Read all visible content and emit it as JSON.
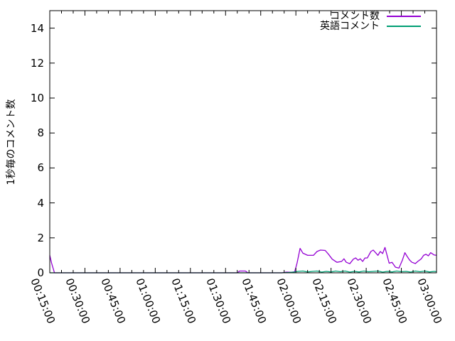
{
  "chart_data": {
    "type": "line",
    "ylabel": "1秒毎のコメント数",
    "xlabel": "",
    "ylim": [
      0,
      15
    ],
    "x_start_minutes": 15,
    "x_end_minutes": 180,
    "x_minor_tick_step_minutes": 5,
    "grid": false,
    "background_color": "#ffffff",
    "axis_color": "#000000",
    "ytick_values": [
      0,
      2,
      4,
      6,
      8,
      10,
      12,
      14
    ],
    "ytick_labels": [
      "0",
      "2",
      "4",
      "6",
      "8",
      "10",
      "12",
      "14"
    ],
    "xticks": [
      {
        "minutes": 15,
        "label": "00:15:00"
      },
      {
        "minutes": 30,
        "label": "00:30:00"
      },
      {
        "minutes": 45,
        "label": "00:45:00"
      },
      {
        "minutes": 60,
        "label": "01:00:00"
      },
      {
        "minutes": 75,
        "label": "01:15:00"
      },
      {
        "minutes": 90,
        "label": "01:30:00"
      },
      {
        "minutes": 105,
        "label": "01:45:00"
      },
      {
        "minutes": 120,
        "label": "02:00:00"
      },
      {
        "minutes": 135,
        "label": "02:15:00"
      },
      {
        "minutes": 150,
        "label": "02:30:00"
      },
      {
        "minutes": 165,
        "label": "02:45:00"
      },
      {
        "minutes": 180,
        "label": "03:00:00"
      }
    ],
    "legend_position": "top-right-inside",
    "series": [
      {
        "name": "コメント数",
        "color": "#9400d3",
        "points": [
          [
            15,
            1.0
          ],
          [
            15.8,
            0.55
          ],
          [
            17,
            0
          ],
          [
            95,
            0
          ],
          [
            96,
            0.1
          ],
          [
            98.5,
            0.1
          ],
          [
            99.5,
            0
          ],
          [
            114,
            0
          ],
          [
            116,
            0.04
          ],
          [
            118,
            0.03
          ],
          [
            119.5,
            0.06
          ],
          [
            120.5,
            0.55
          ],
          [
            121.8,
            1.4
          ],
          [
            123,
            1.12
          ],
          [
            125,
            1.0
          ],
          [
            127.5,
            1.0
          ],
          [
            129,
            1.22
          ],
          [
            130.5,
            1.3
          ],
          [
            132.5,
            1.28
          ],
          [
            134,
            1.05
          ],
          [
            135.5,
            0.78
          ],
          [
            137.5,
            0.6
          ],
          [
            139.5,
            0.65
          ],
          [
            140.5,
            0.8
          ],
          [
            141.5,
            0.6
          ],
          [
            143,
            0.52
          ],
          [
            144.5,
            0.78
          ],
          [
            145.5,
            0.85
          ],
          [
            146.5,
            0.72
          ],
          [
            147.5,
            0.8
          ],
          [
            148.5,
            0.65
          ],
          [
            149.5,
            0.85
          ],
          [
            150.5,
            0.85
          ],
          [
            152,
            1.22
          ],
          [
            153,
            1.3
          ],
          [
            154,
            1.15
          ],
          [
            155,
            1.0
          ],
          [
            156,
            1.22
          ],
          [
            157,
            1.1
          ],
          [
            158,
            1.45
          ],
          [
            159.8,
            0.55
          ],
          [
            161,
            0.6
          ],
          [
            162.5,
            0.32
          ],
          [
            164,
            0.27
          ],
          [
            165.5,
            0.75
          ],
          [
            166.5,
            1.15
          ],
          [
            167.5,
            0.93
          ],
          [
            168.5,
            0.73
          ],
          [
            169.5,
            0.6
          ],
          [
            171,
            0.53
          ],
          [
            172,
            0.65
          ],
          [
            173.5,
            0.8
          ],
          [
            174.5,
            1.0
          ],
          [
            175.5,
            1.06
          ],
          [
            176.5,
            0.97
          ],
          [
            177.5,
            1.15
          ],
          [
            179,
            1.02
          ],
          [
            180,
            1.0
          ]
        ]
      },
      {
        "name": "英語コメント",
        "color": "#009e73",
        "points": [
          [
            15,
            0
          ],
          [
            95,
            0
          ],
          [
            114,
            0
          ],
          [
            117,
            0.02
          ],
          [
            119,
            0.04
          ],
          [
            121,
            0.08
          ],
          [
            123,
            0.1
          ],
          [
            125,
            0.05
          ],
          [
            127,
            0.08
          ],
          [
            129,
            0.1
          ],
          [
            131,
            0.04
          ],
          [
            133,
            0.08
          ],
          [
            135,
            0.05
          ],
          [
            137,
            0.1
          ],
          [
            139,
            0.06
          ],
          [
            141,
            0.1
          ],
          [
            143,
            0.04
          ],
          [
            145,
            0.08
          ],
          [
            147,
            0.05
          ],
          [
            149,
            0.1
          ],
          [
            151,
            0.06
          ],
          [
            153,
            0.08
          ],
          [
            155,
            0.1
          ],
          [
            157,
            0.04
          ],
          [
            159,
            0.08
          ],
          [
            161,
            0.05
          ],
          [
            163,
            0.1
          ],
          [
            165,
            0.06
          ],
          [
            167,
            0.08
          ],
          [
            169,
            0.04
          ],
          [
            171,
            0.1
          ],
          [
            173,
            0.06
          ],
          [
            175,
            0.1
          ],
          [
            177,
            0.05
          ],
          [
            179,
            0.08
          ],
          [
            180,
            0.06
          ]
        ]
      }
    ]
  }
}
